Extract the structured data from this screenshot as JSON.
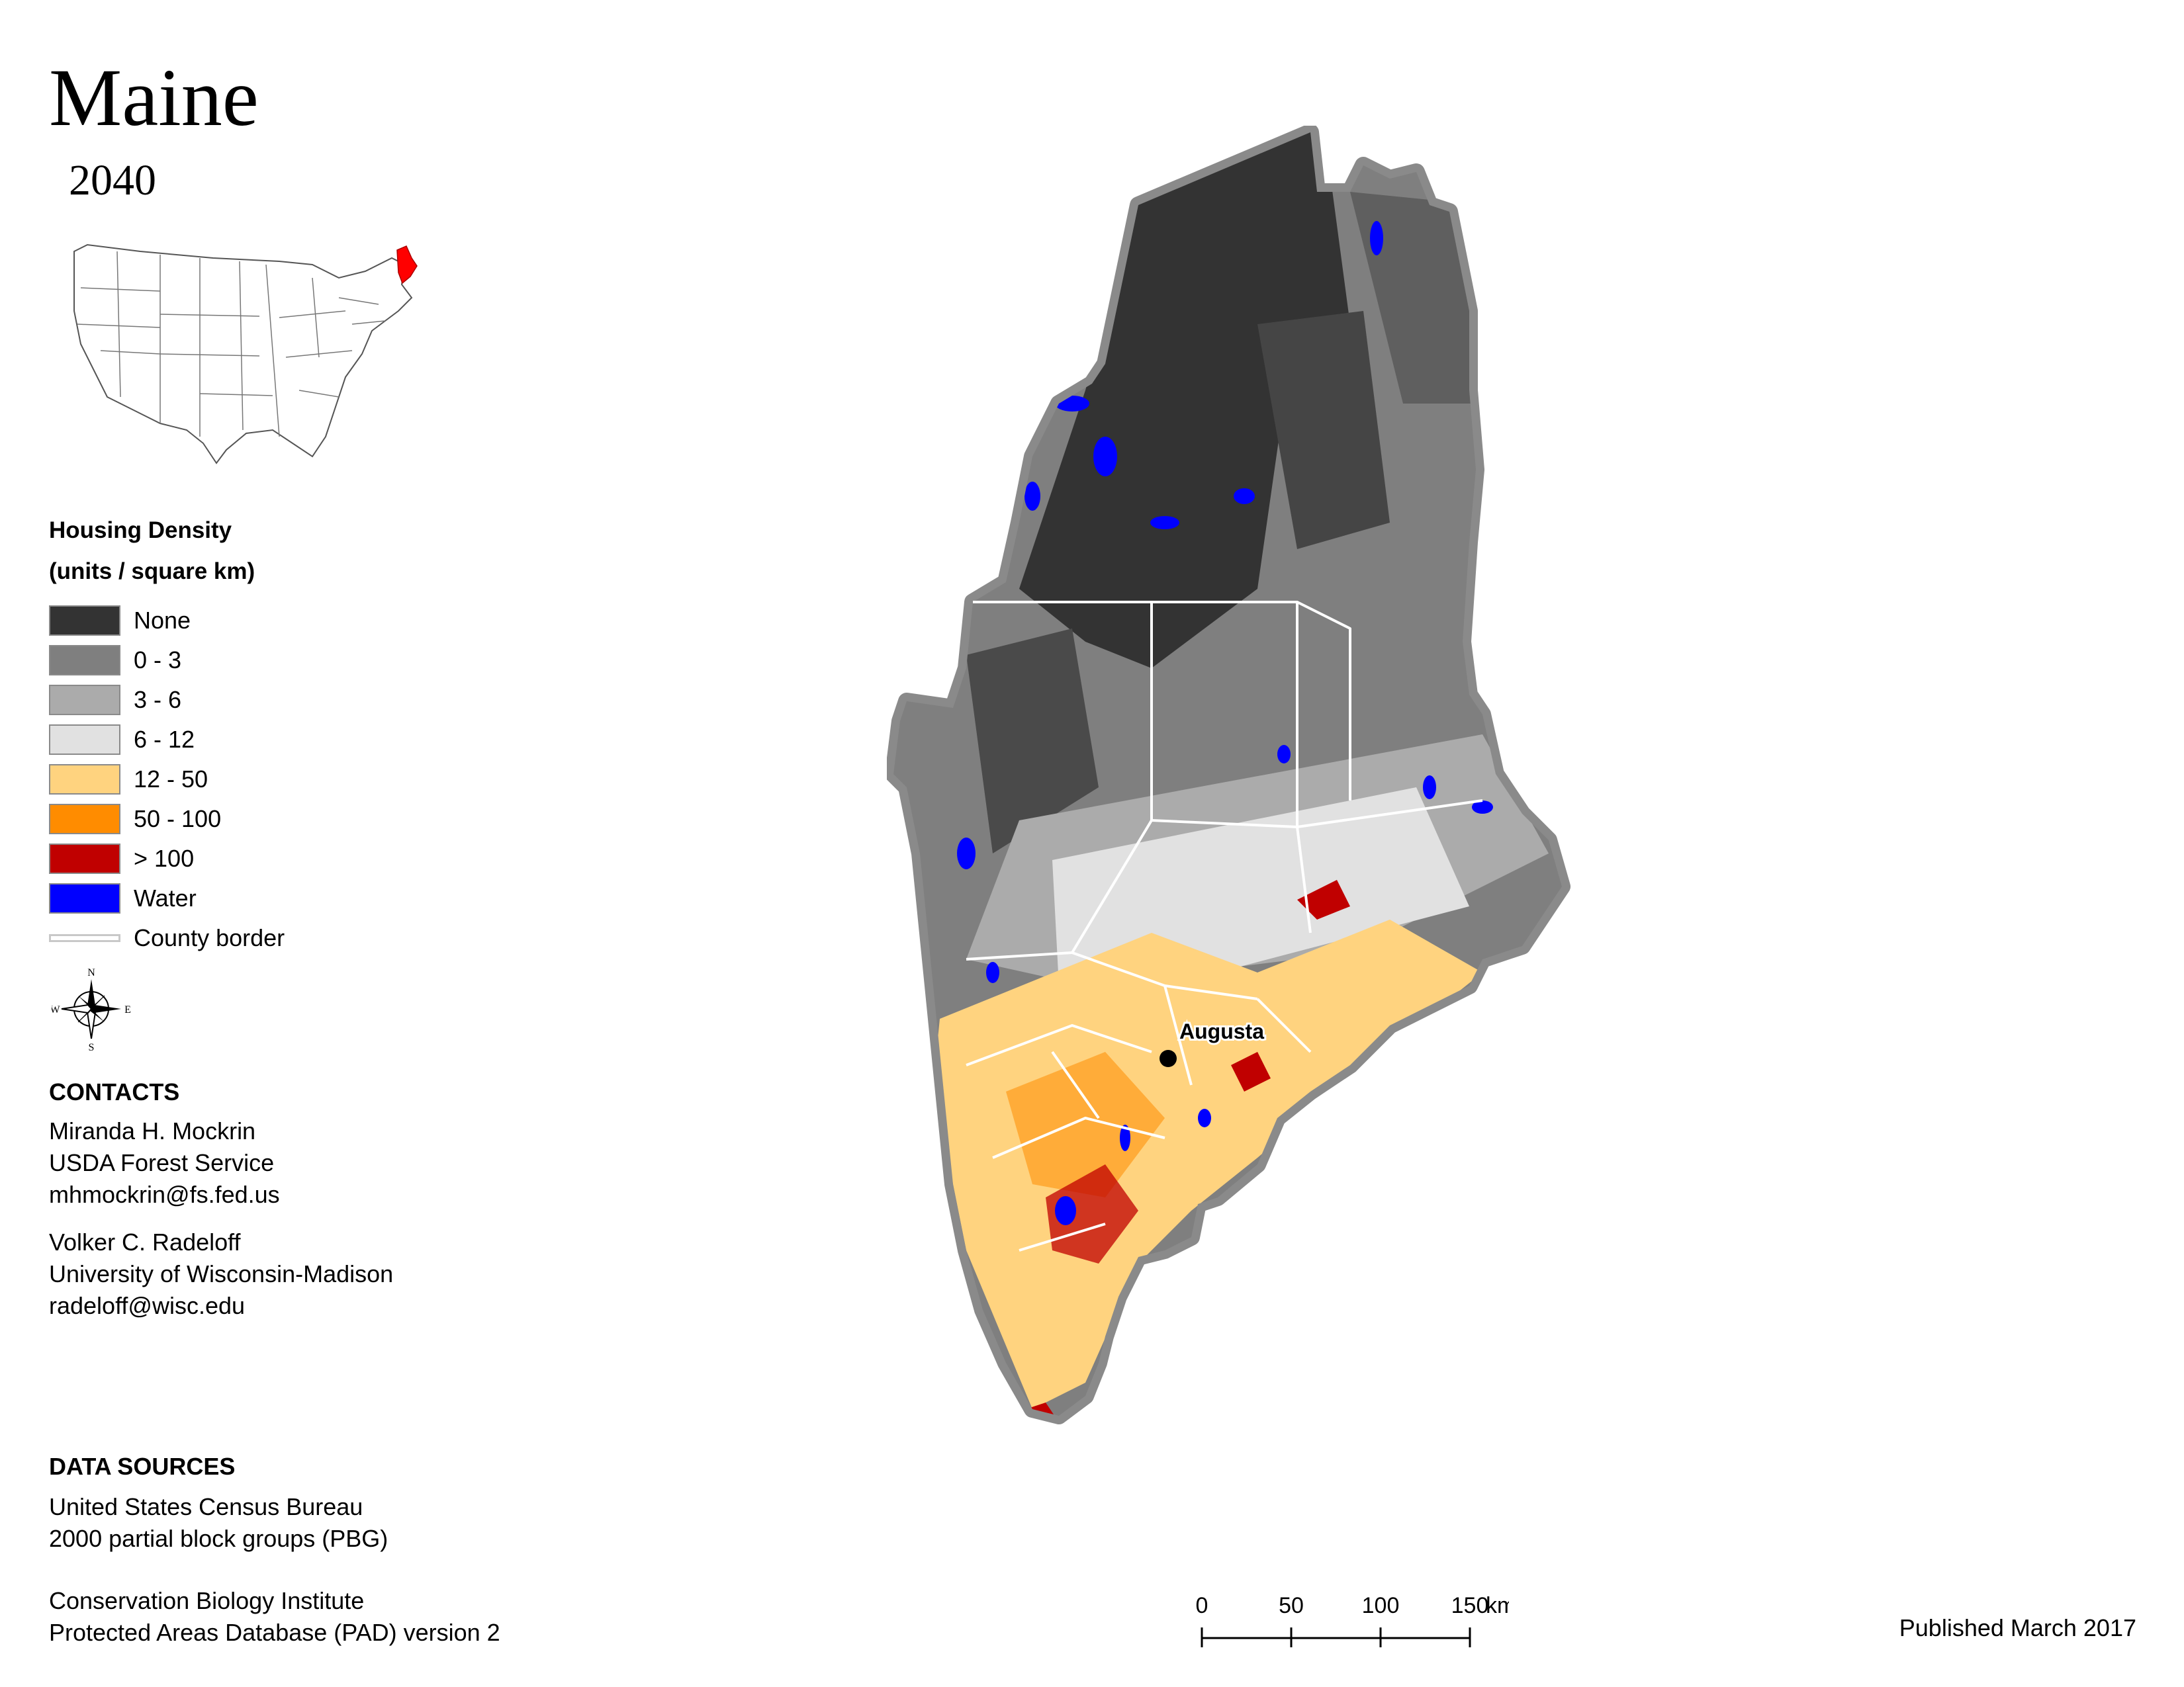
{
  "title": "Maine",
  "year": "2040",
  "legend": {
    "title_line1": "Housing Density",
    "title_line2": "(units / square km)",
    "items": [
      {
        "label": "None",
        "color": "#333333"
      },
      {
        "label": "0 - 3",
        "color": "#7f7f7f"
      },
      {
        "label": "3 - 6",
        "color": "#ababab"
      },
      {
        "label": "6 - 12",
        "color": "#e1e1e1"
      },
      {
        "label": "12 - 50",
        "color": "#ffd37f"
      },
      {
        "label": "50 - 100",
        "color": "#ff8c00"
      },
      {
        "label": "> 100",
        "color": "#c00000"
      },
      {
        "label": "Water",
        "color": "#0000ff"
      },
      {
        "label": "County border",
        "color": "#c8c8c8"
      }
    ]
  },
  "compass": {
    "n": "N",
    "s": "S",
    "e": "E",
    "w": "W"
  },
  "map": {
    "city_label": "Augusta"
  },
  "contacts": {
    "heading": "CONTACTS",
    "person1": [
      "Miranda H. Mockrin",
      "USDA Forest Service",
      "mhmockrin@fs.fed.us"
    ],
    "person2": [
      "Volker C. Radeloff",
      "University of Wisconsin-Madison",
      "radeloff@wisc.edu"
    ]
  },
  "sources": {
    "heading": "DATA SOURCES",
    "source1": [
      "United States Census Bureau",
      "2000 partial block groups (PBG)"
    ],
    "source2": [
      "Conservation Biology Institute",
      "Protected Areas Database (PAD) version 2"
    ]
  },
  "scalebar": {
    "labels": [
      "0",
      "50",
      "100",
      "150"
    ],
    "unit": "km"
  },
  "published": "Published March 2017"
}
